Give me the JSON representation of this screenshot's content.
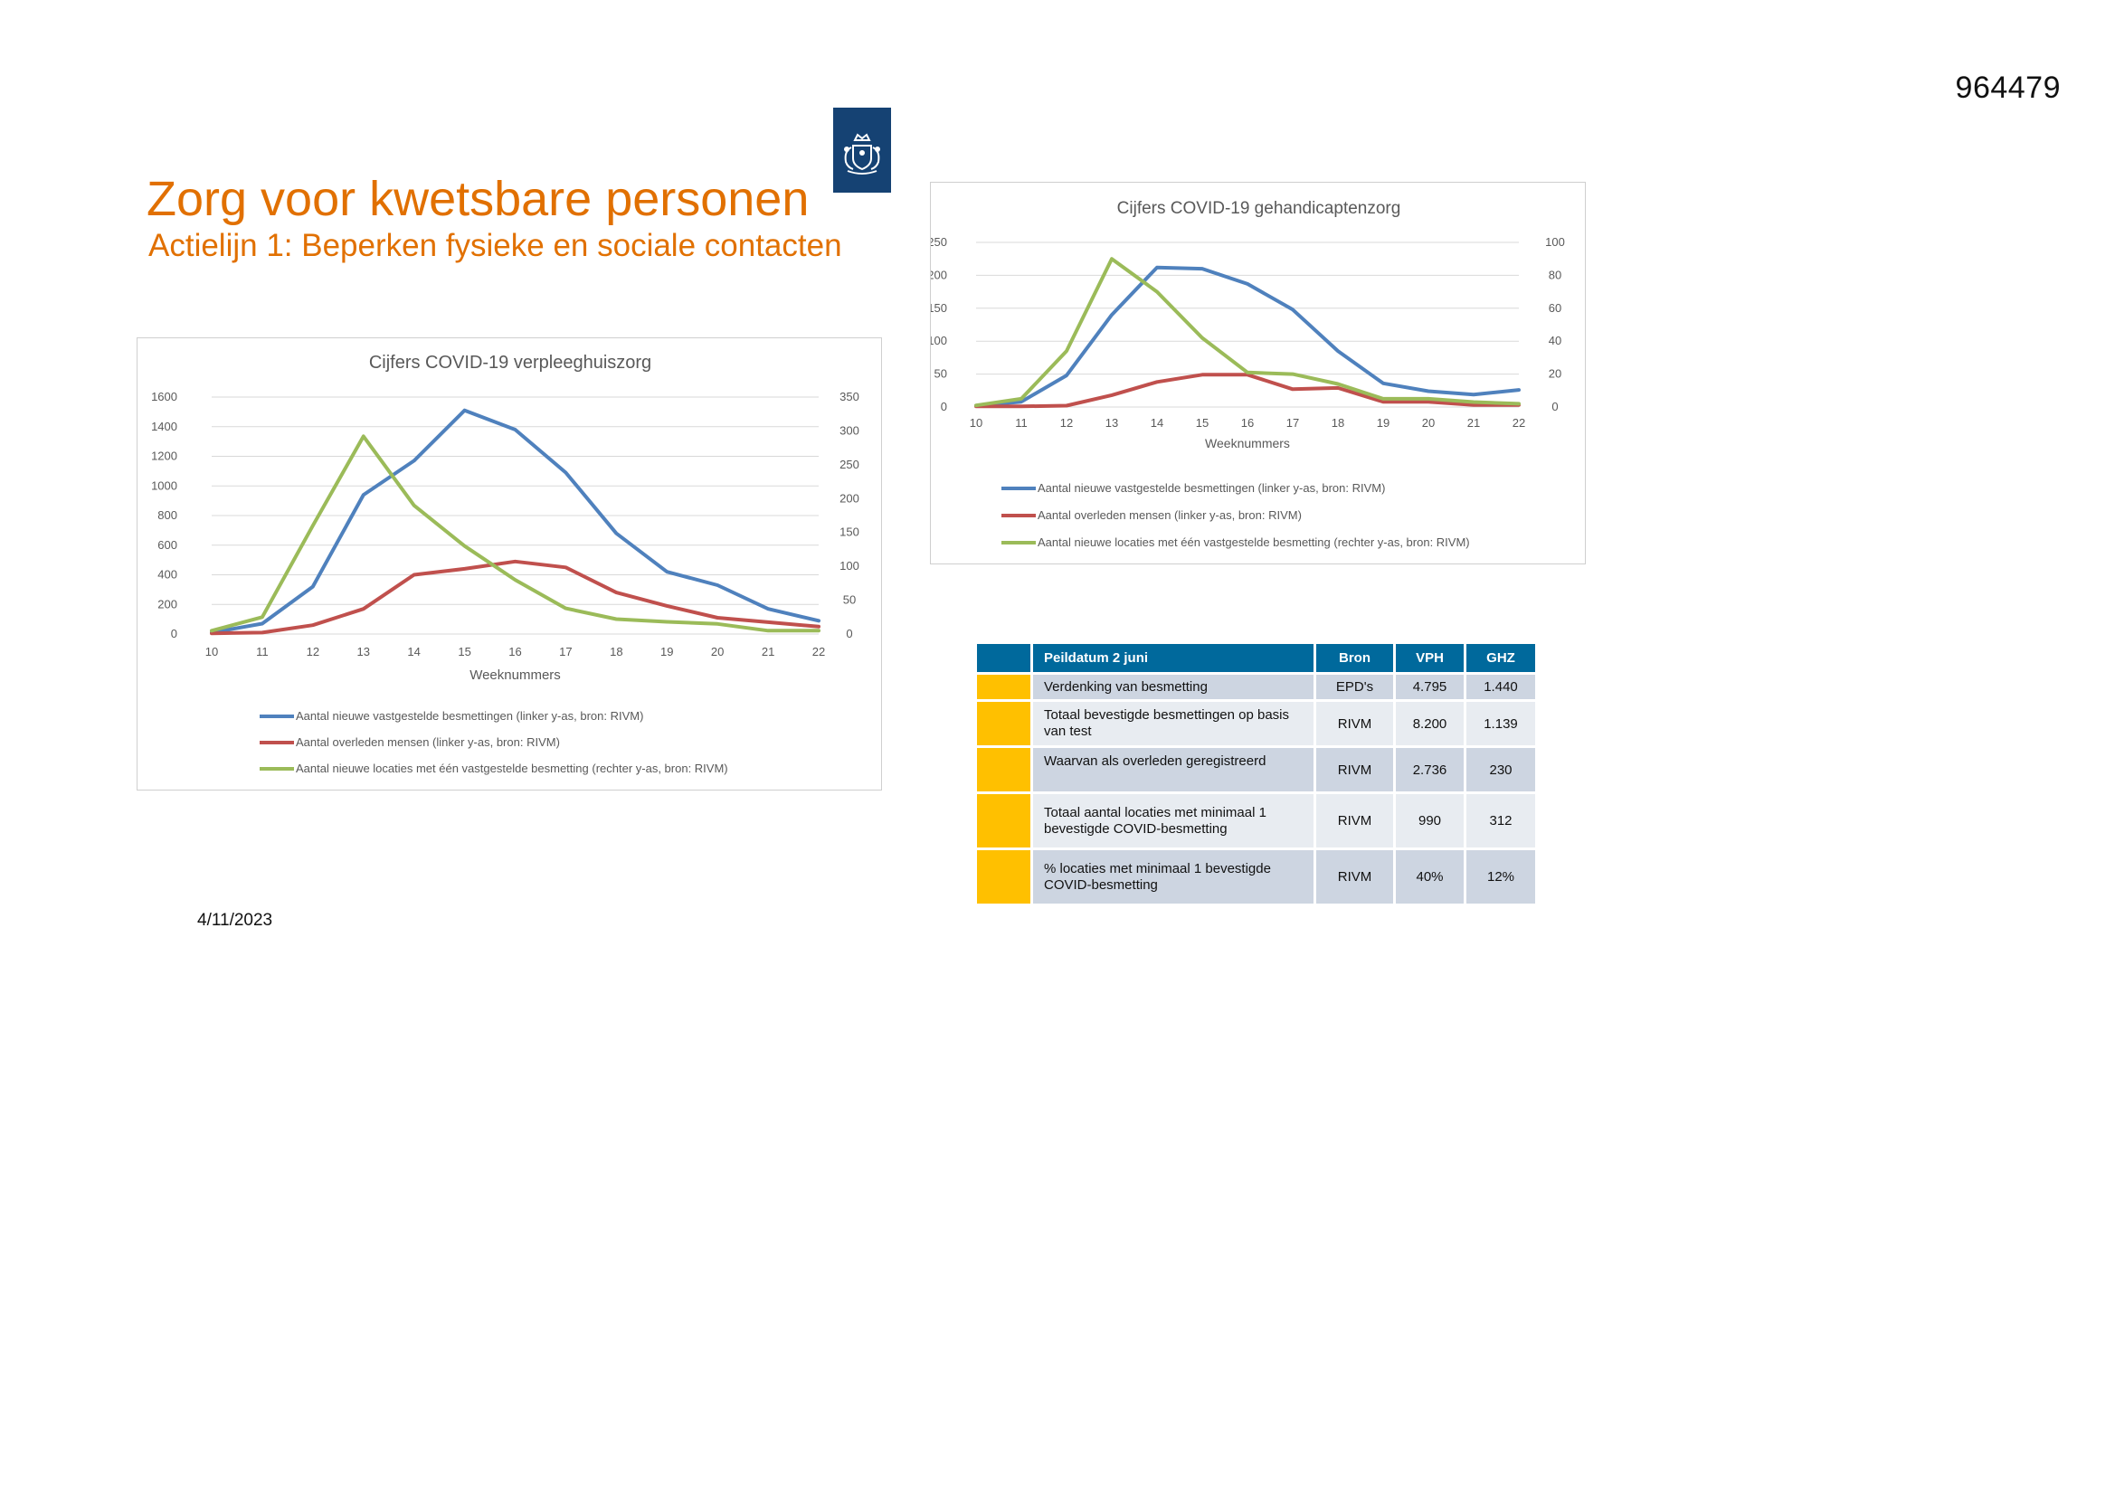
{
  "document": {
    "number": "964479",
    "title": "Zorg voor kwetsbare personen",
    "subtitle": "Actielijn 1: Beperken fysieke en sociale contacten",
    "date": "4/11/2023"
  },
  "colors": {
    "title": "#e17000",
    "logo_bg": "#154273",
    "table_header": "#00699c",
    "table_marker": "#ffc000",
    "row_dark": "#cdd5e1",
    "row_light": "#e8ecf1",
    "series_blue": "#4f81bd",
    "series_red": "#c0504d",
    "series_green": "#9bbb59"
  },
  "icons": {
    "logo": "rijksoverheid-coat-of-arms-icon"
  },
  "chart_data": [
    {
      "id": "vph",
      "type": "line",
      "title": "Cijfers COVID-19 verpleeghuiszorg",
      "xlabel": "Weeknummers",
      "categories": [
        "10",
        "11",
        "12",
        "13",
        "14",
        "15",
        "16",
        "17",
        "18",
        "19",
        "20",
        "21",
        "22"
      ],
      "y_left": {
        "min": 0,
        "max": 1600,
        "ticks": [
          "0",
          "200",
          "400",
          "600",
          "800",
          "1000",
          "1200",
          "1400",
          "1600"
        ]
      },
      "y_right": {
        "min": 0,
        "max": 350,
        "ticks": [
          "0",
          "50",
          "100",
          "150",
          "200",
          "250",
          "300",
          "350"
        ]
      },
      "grid": true,
      "legend_position": "bottom",
      "series": [
        {
          "name": "Aantal nieuwe vastgestelde besmettingen  (linker y-as, bron: RIVM)",
          "axis": "left",
          "color": "#4f81bd",
          "values": [
            10,
            70,
            320,
            940,
            1170,
            1510,
            1380,
            1090,
            680,
            420,
            330,
            170,
            90
          ]
        },
        {
          "name": "Aantal overleden mensen  (linker y-as, bron: RIVM)",
          "axis": "left",
          "color": "#c0504d",
          "values": [
            5,
            10,
            60,
            170,
            400,
            440,
            490,
            450,
            280,
            190,
            110,
            80,
            50
          ]
        },
        {
          "name": "Aantal nieuwe locaties met één vastgestelde besmetting  (rechter y-as, bron: RIVM)",
          "axis": "right",
          "color": "#9bbb59",
          "values": [
            5,
            25,
            160,
            292,
            190,
            130,
            80,
            38,
            22,
            18,
            15,
            5,
            5
          ]
        }
      ]
    },
    {
      "id": "ghz",
      "type": "line",
      "title": "Cijfers COVID-19 gehandicaptenzorg",
      "xlabel": "Weeknummers",
      "categories": [
        "10",
        "11",
        "12",
        "13",
        "14",
        "15",
        "16",
        "17",
        "18",
        "19",
        "20",
        "21",
        "22"
      ],
      "y_left": {
        "min": 0,
        "max": 250,
        "ticks": [
          "0",
          "50",
          "100",
          "150",
          "200",
          "250"
        ]
      },
      "y_right": {
        "min": 0,
        "max": 100,
        "ticks": [
          "0",
          "20",
          "40",
          "60",
          "80",
          "100"
        ]
      },
      "grid": true,
      "legend_position": "bottom",
      "series": [
        {
          "name": "Aantal nieuwe vastgestelde besmettingen  (linker y-as, bron: RIVM)",
          "axis": "left",
          "color": "#4f81bd",
          "values": [
            2,
            8,
            48,
            140,
            212,
            210,
            187,
            148,
            85,
            36,
            24,
            19,
            26
          ]
        },
        {
          "name": "Aantal overleden mensen  (linker y-as, bron: RIVM)",
          "axis": "left",
          "color": "#c0504d",
          "values": [
            1,
            1,
            2,
            18,
            38,
            49,
            49,
            27,
            29,
            8,
            8,
            3,
            3
          ]
        },
        {
          "name": "Aantal nieuwe locaties met één vastgestelde besmetting  (rechter y-as, bron: RIVM)",
          "axis": "right",
          "color": "#9bbb59",
          "values": [
            1,
            5,
            34,
            90,
            70,
            42,
            21,
            20,
            14,
            5,
            5,
            3,
            2
          ]
        }
      ]
    }
  ],
  "table": {
    "headers": [
      "Peildatum 2 juni",
      "Bron",
      "VPH",
      "GHZ"
    ],
    "rows": [
      {
        "label": "Verdenking van besmetting",
        "bron": "EPD's",
        "vph": "4.795",
        "ghz": "1.440"
      },
      {
        "label": "Totaal bevestigde besmettingen op basis van test",
        "bron": "RIVM",
        "vph": "8.200",
        "ghz": "1.139"
      },
      {
        "label": "Waarvan als overleden geregistreerd",
        "bron": "RIVM",
        "vph": "2.736",
        "ghz": "230"
      },
      {
        "label": "Totaal aantal locaties met minimaal 1 bevestigde COVID-besmetting",
        "bron": "RIVM",
        "vph": "990",
        "ghz": "312"
      },
      {
        "label": "% locaties met minimaal 1 bevestigde COVID-besmetting",
        "bron": "RIVM",
        "vph": "40%",
        "ghz": "12%"
      }
    ]
  }
}
